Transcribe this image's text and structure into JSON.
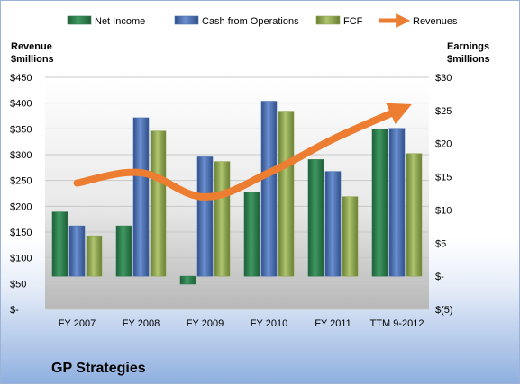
{
  "chart_data": {
    "type": "bar",
    "categories": [
      "FY 2007",
      "FY 2008",
      "FY 2009",
      "FY 2010",
      "FY 2011",
      "TTM 9-2012"
    ],
    "series": [
      {
        "name": "Net Income",
        "axis": "right",
        "color": "#2f7d4f",
        "values": [
          9.7,
          7.6,
          -1.2,
          12.7,
          17.6,
          22.2
        ]
      },
      {
        "name": "Cash from Operations",
        "axis": "right",
        "color": "#4a70b0",
        "values": [
          7.6,
          23.9,
          18.0,
          26.4,
          15.8,
          22.3
        ]
      },
      {
        "name": "FCF",
        "axis": "right",
        "color": "#8da64e",
        "values": [
          6.1,
          21.9,
          17.3,
          24.9,
          12.0,
          18.5
        ]
      },
      {
        "name": "Revenues",
        "axis": "left",
        "type": "line",
        "color": "#ed7d31",
        "values": [
          245,
          265,
          218,
          265,
          330,
          385
        ]
      }
    ],
    "left_axis": {
      "title_line1": "Revenue",
      "title_line2": "$millions",
      "ylim": [
        0,
        450
      ],
      "ticks": [
        "$-",
        "$50",
        "$100",
        "$150",
        "$200",
        "$250",
        "$300",
        "$350",
        "$400",
        "$450"
      ]
    },
    "right_axis": {
      "title_line1": "Earnings",
      "title_line2": "$millions",
      "ylim": [
        -5,
        30
      ],
      "ticks": [
        "$(5)",
        "$-",
        "$5",
        "$10",
        "$15",
        "$20",
        "$25",
        "$30"
      ]
    },
    "legend": [
      "Net Income",
      "Cash from Operations",
      "FCF",
      "Revenues"
    ],
    "legend_position": "top",
    "grid": true
  },
  "company_name": "GP Strategies"
}
